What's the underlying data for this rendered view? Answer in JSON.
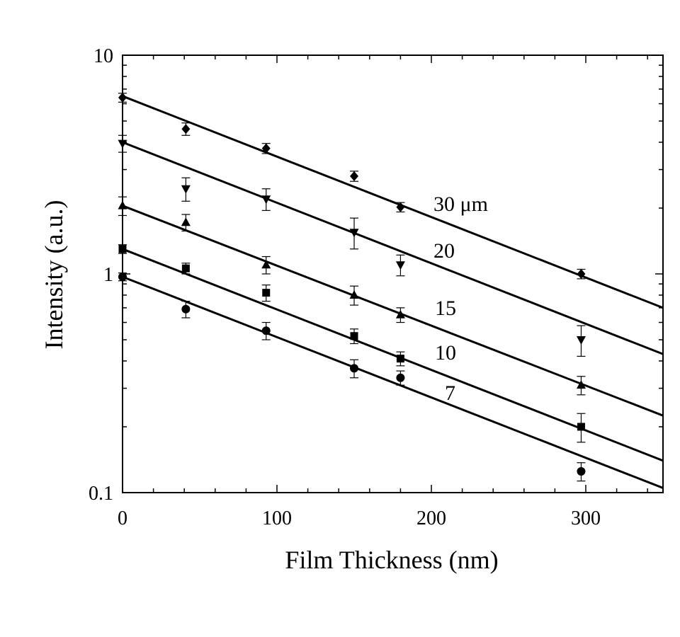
{
  "chart_data": {
    "type": "scatter",
    "xlabel": "Film Thickness (nm)",
    "ylabel": "Intensity (a.u.)",
    "xlim": [
      0,
      350
    ],
    "ylim": [
      0.1,
      10
    ],
    "yscale": "log",
    "x_ticks": [
      0,
      100,
      200,
      300
    ],
    "x_tick_labels": [
      "0",
      "100",
      "200",
      "300"
    ],
    "y_ticks": [
      0.1,
      1,
      10
    ],
    "y_tick_labels": [
      "0.1",
      "1",
      "10"
    ],
    "grid": false,
    "legend": "none",
    "series": [
      {
        "name": "30 μm",
        "marker": "diamond",
        "points": [
          {
            "x": 0,
            "y": 6.4,
            "err": 0.3
          },
          {
            "x": 41,
            "y": 4.6,
            "err": 0.3
          },
          {
            "x": 93,
            "y": 3.75,
            "err": 0.2
          },
          {
            "x": 150,
            "y": 2.8,
            "err": 0.15
          },
          {
            "x": 180,
            "y": 2.02,
            "err": 0.1
          },
          {
            "x": 297,
            "y": 1.0,
            "err": 0.05
          }
        ],
        "fit": {
          "y0": 6.5,
          "y350": 0.7
        }
      },
      {
        "name": "20",
        "marker": "triangle-down",
        "points": [
          {
            "x": 0,
            "y": 3.95,
            "err": 0.35
          },
          {
            "x": 41,
            "y": 2.45,
            "err": 0.3
          },
          {
            "x": 93,
            "y": 2.2,
            "err": 0.25
          },
          {
            "x": 150,
            "y": 1.55,
            "err": 0.25
          },
          {
            "x": 180,
            "y": 1.1,
            "err": 0.12
          },
          {
            "x": 297,
            "y": 0.5,
            "err": 0.08
          }
        ],
        "fit": {
          "y0": 4.0,
          "y350": 0.43
        }
      },
      {
        "name": "15",
        "marker": "triangle-up",
        "points": [
          {
            "x": 0,
            "y": 2.05,
            "err": 0.2
          },
          {
            "x": 41,
            "y": 1.72,
            "err": 0.15
          },
          {
            "x": 93,
            "y": 1.1,
            "err": 0.1
          },
          {
            "x": 150,
            "y": 0.8,
            "err": 0.08
          },
          {
            "x": 180,
            "y": 0.65,
            "err": 0.05
          },
          {
            "x": 297,
            "y": 0.31,
            "err": 0.03
          }
        ],
        "fit": {
          "y0": 2.05,
          "y350": 0.225
        }
      },
      {
        "name": "10",
        "marker": "square",
        "points": [
          {
            "x": 0,
            "y": 1.3,
            "err": 0.06
          },
          {
            "x": 41,
            "y": 1.06,
            "err": 0.06
          },
          {
            "x": 93,
            "y": 0.82,
            "err": 0.07
          },
          {
            "x": 150,
            "y": 0.52,
            "err": 0.04
          },
          {
            "x": 180,
            "y": 0.41,
            "err": 0.03
          },
          {
            "x": 297,
            "y": 0.2,
            "err": 0.03
          }
        ],
        "fit": {
          "y0": 1.3,
          "y350": 0.14
        }
      },
      {
        "name": "7",
        "marker": "circle",
        "points": [
          {
            "x": 0,
            "y": 0.97,
            "err": 0.04
          },
          {
            "x": 41,
            "y": 0.69,
            "err": 0.06
          },
          {
            "x": 93,
            "y": 0.55,
            "err": 0.05
          },
          {
            "x": 150,
            "y": 0.37,
            "err": 0.035
          },
          {
            "x": 180,
            "y": 0.335,
            "err": 0.025
          },
          {
            "x": 297,
            "y": 0.125,
            "err": 0.012
          }
        ],
        "fit": {
          "y0": 0.97,
          "y350": 0.105
        }
      }
    ]
  }
}
